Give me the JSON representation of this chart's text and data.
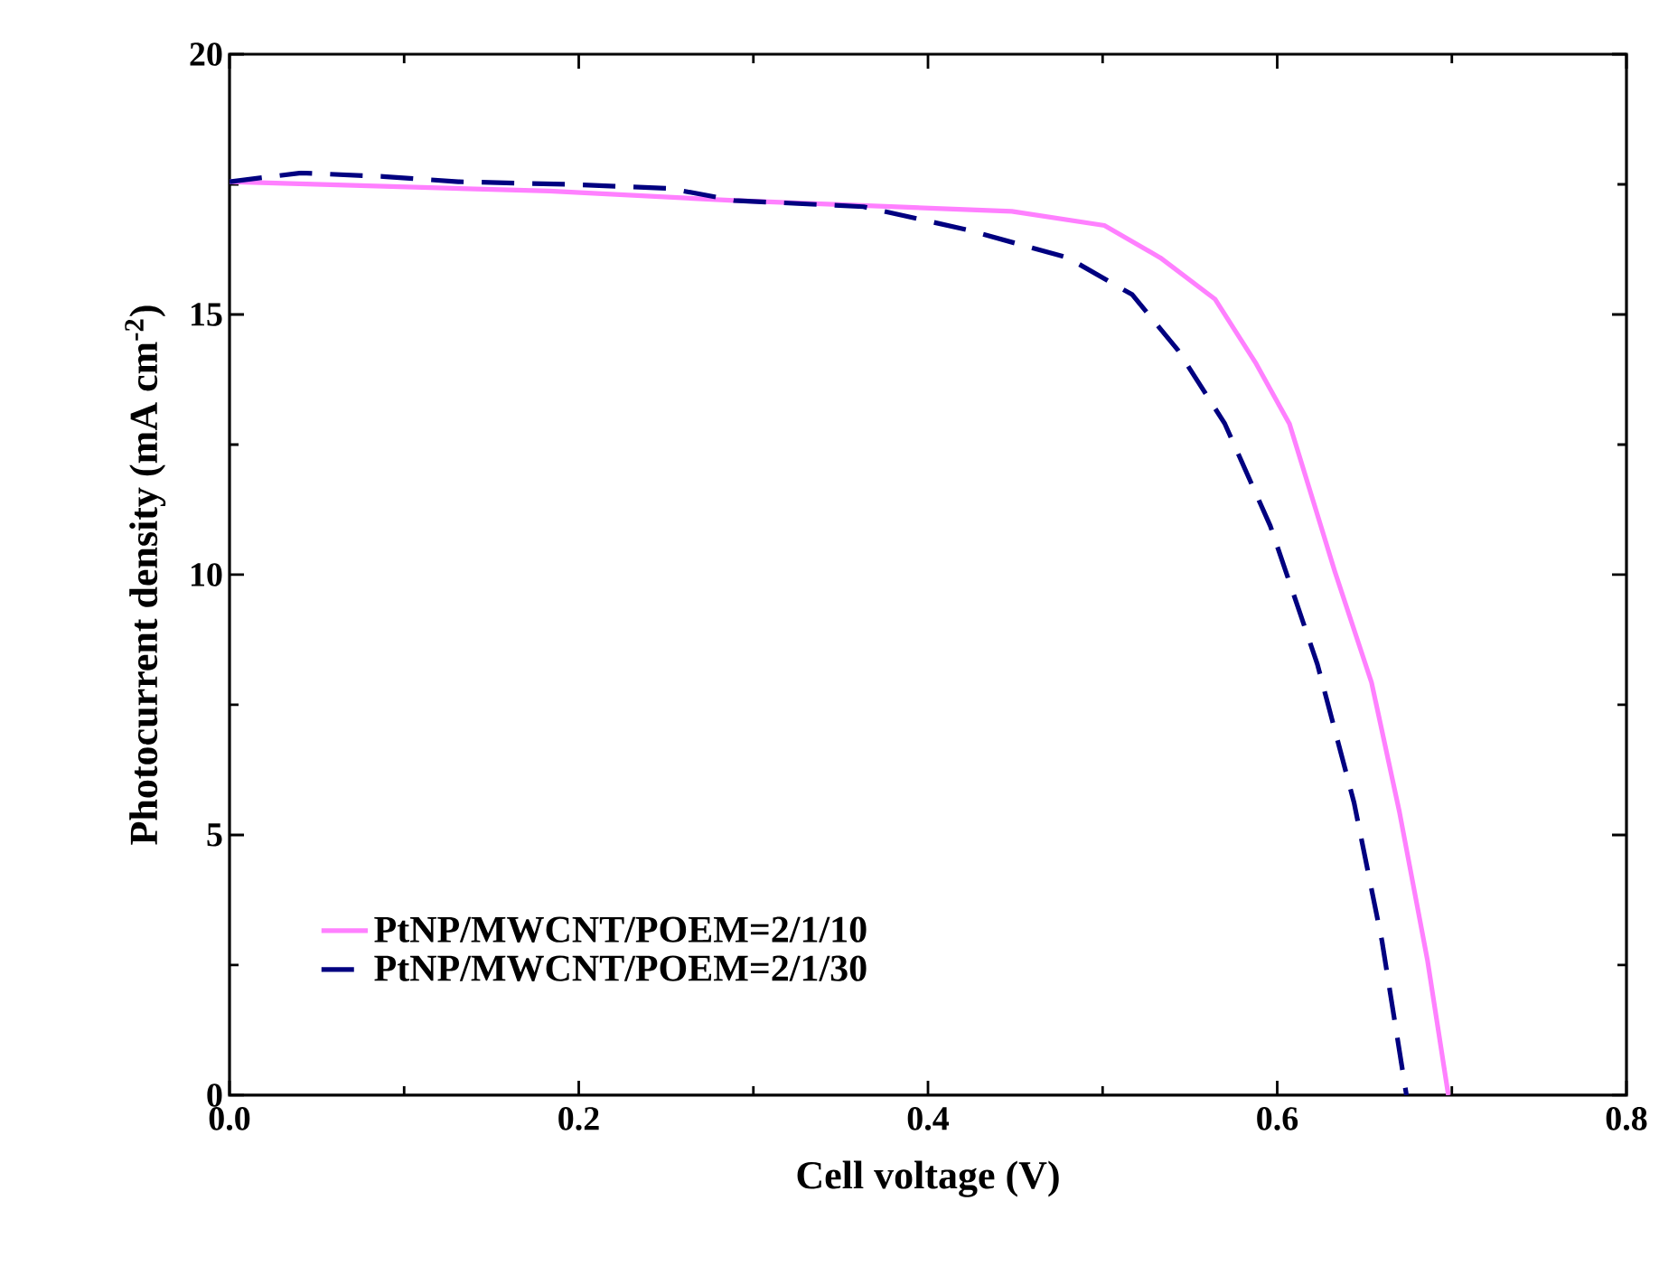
{
  "chart_data": {
    "type": "line",
    "xlabel": "Cell voltage (V)",
    "ylabel": "Photocurrent density (mA cm$^{-2}$)",
    "xlim": [
      0,
      0.8
    ],
    "ylim": [
      0,
      20
    ],
    "xticks": [
      {
        "value": 0,
        "label": "0.0"
      },
      {
        "value": 0.2,
        "label": "0.2"
      },
      {
        "value": 0.4,
        "label": "0.4"
      },
      {
        "value": 0.6,
        "label": "0.6"
      },
      {
        "value": 0.8,
        "label": "0.8"
      }
    ],
    "yticks": [
      0,
      5,
      10,
      15,
      20
    ],
    "legend": "bottom left",
    "grid": false,
    "marker": "none",
    "series": [
      {
        "name": "PtNP/MWCNT/POEM=2/1/10",
        "color": "#ff80ff",
        "line_style": "solid",
        "x": [
          0,
          0.183,
          0.289,
          0.448,
          0.501,
          0.533,
          0.5645,
          0.588,
          0.607,
          0.633,
          0.654,
          0.67,
          0.686,
          0.698
        ],
        "values": [
          17.55,
          17.37,
          17.19,
          16.98,
          16.71,
          16.09,
          15.29,
          14.05,
          12.9,
          10.06,
          7.93,
          5.44,
          2.6,
          0
        ]
      },
      {
        "name": "PtNP/MWCNT/POEM=2/1/30",
        "color": "#000080",
        "line_style": "dashed",
        "x": [
          0,
          0.041,
          0.088,
          0.131,
          0.194,
          0.252,
          0.289,
          0.363,
          0.422,
          0.48,
          0.517,
          0.543,
          0.57,
          0.596,
          0.623,
          0.644,
          0.66,
          0.674
        ],
        "values": [
          17.55,
          17.72,
          17.65,
          17.55,
          17.5,
          17.42,
          17.19,
          17.07,
          16.63,
          16.09,
          15.38,
          14.32,
          12.9,
          10.94,
          8.28,
          5.62,
          2.96,
          0
        ]
      }
    ]
  }
}
